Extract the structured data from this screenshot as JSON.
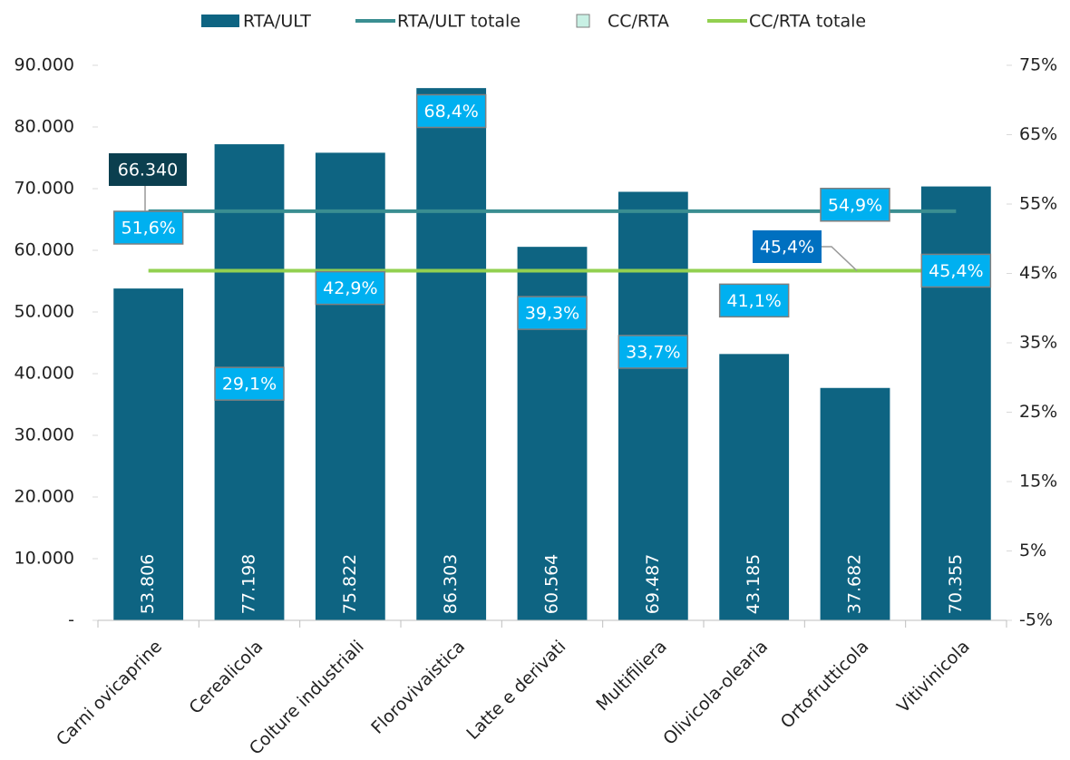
{
  "chart_data": {
    "type": "bar",
    "categories": [
      "Carni ovicaprine",
      "Cerealicola",
      "Colture industriali",
      "Florovivaistica",
      "Latte e derivati",
      "Multifiliera",
      "Olivicola-olearia",
      "Ortofrutticola",
      "Vitivinicola"
    ],
    "series": [
      {
        "name": "RTA/ULT",
        "type": "bar",
        "color": "#0e6482",
        "values": [
          53806,
          77198,
          75822,
          86303,
          60564,
          69487,
          43185,
          37682,
          70355
        ],
        "value_labels": [
          "53.806",
          "77.198",
          "75.822",
          "86.303",
          "60.564",
          "69.487",
          "43.185",
          "37.682",
          "70.355"
        ]
      },
      {
        "name": "CC/RTA",
        "type": "label",
        "axis": "y2",
        "color": "#00b0f0",
        "legend_color": "#c8f0e4",
        "values": [
          51.6,
          29.1,
          42.9,
          68.4,
          39.3,
          33.7,
          41.1,
          54.9,
          45.4
        ],
        "value_labels": [
          "51,6%",
          "29,1%",
          "42,9%",
          "68,4%",
          "39,3%",
          "33,7%",
          "41,1%",
          "54,9%",
          "45,4%"
        ]
      }
    ],
    "totals": [
      {
        "name": "RTA/ULT totale",
        "value": 66340,
        "value_label": "66.340",
        "color": "#3a8e91",
        "label_color": "#0b3f4f"
      },
      {
        "name": "CC/RTA totale",
        "value": 45.4,
        "value_label": "45,4%",
        "axis": "y2",
        "color": "#92d050",
        "label_color": "#0070c0"
      }
    ],
    "ylim": [
      0,
      90000
    ],
    "yticks": [
      {
        "value": 0,
        "label": "-"
      },
      {
        "value": 10000,
        "label": "10.000"
      },
      {
        "value": 20000,
        "label": "20.000"
      },
      {
        "value": 30000,
        "label": "30.000"
      },
      {
        "value": 40000,
        "label": "40.000"
      },
      {
        "value": 50000,
        "label": "50.000"
      },
      {
        "value": 60000,
        "label": "60.000"
      },
      {
        "value": 70000,
        "label": "70.000"
      },
      {
        "value": 80000,
        "label": "80.000"
      },
      {
        "value": 90000,
        "label": "90.000"
      }
    ],
    "y2lim": [
      -5,
      75
    ],
    "y2ticks": [
      {
        "value": -5,
        "label": "-5%"
      },
      {
        "value": 5,
        "label": "5%"
      },
      {
        "value": 15,
        "label": "15%"
      },
      {
        "value": 25,
        "label": "25%"
      },
      {
        "value": 35,
        "label": "35%"
      },
      {
        "value": 45,
        "label": "45%"
      },
      {
        "value": 55,
        "label": "55%"
      },
      {
        "value": 65,
        "label": "65%"
      },
      {
        "value": 75,
        "label": "75%"
      }
    ],
    "grid": false
  }
}
